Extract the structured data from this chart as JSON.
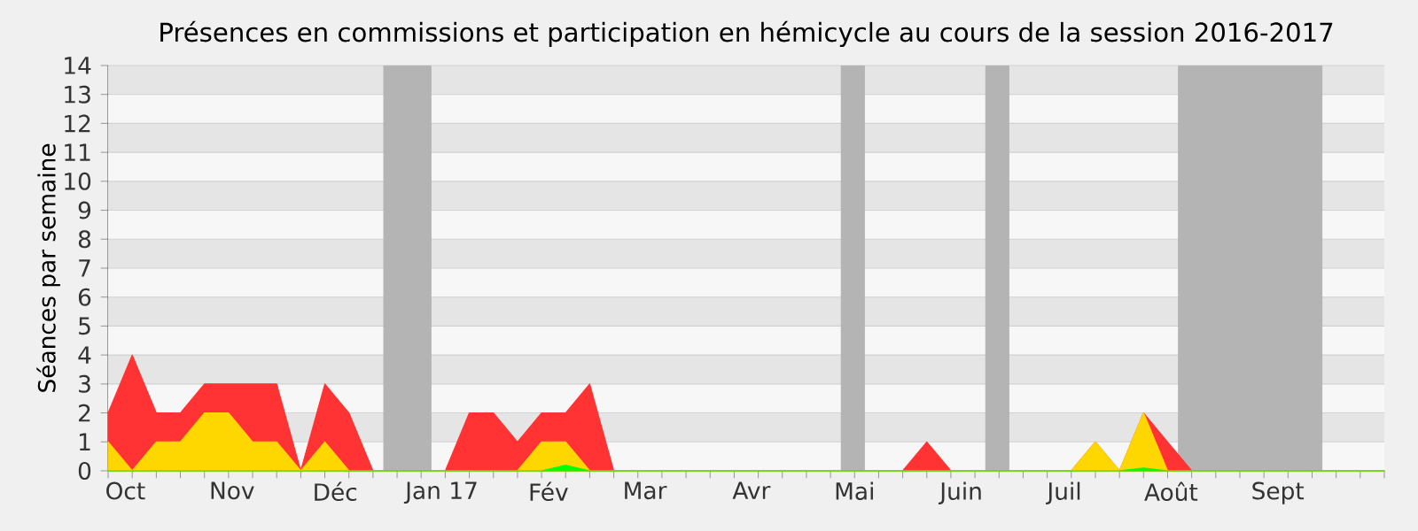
{
  "chart_data": {
    "type": "area",
    "title": "Présences en commissions et participation en hémicycle au cours de la session 2016-2017",
    "ylabel": "Séances par semaine",
    "x": [
      "2016-09-26",
      "2016-10-03",
      "2016-10-10",
      "2016-10-17",
      "2016-10-24",
      "2016-10-31",
      "2016-11-07",
      "2016-11-14",
      "2016-11-21",
      "2016-11-28",
      "2016-12-05",
      "2016-12-12",
      "2016-12-19",
      "2016-12-26",
      "2017-01-02",
      "2017-01-09",
      "2017-01-16",
      "2017-01-23",
      "2017-01-30",
      "2017-02-06",
      "2017-02-13",
      "2017-02-20",
      "2017-02-27",
      "2017-03-06",
      "2017-03-13",
      "2017-03-20",
      "2017-03-27",
      "2017-04-03",
      "2017-04-10",
      "2017-04-17",
      "2017-04-24",
      "2017-05-01",
      "2017-05-08",
      "2017-05-15",
      "2017-05-22",
      "2017-05-29",
      "2017-06-05",
      "2017-06-12",
      "2017-06-19",
      "2017-06-26",
      "2017-07-03",
      "2017-07-10",
      "2017-07-17",
      "2017-07-24",
      "2017-07-31",
      "2017-08-07",
      "2017-08-14",
      "2017-08-21",
      "2017-08-28",
      "2017-09-04",
      "2017-09-11",
      "2017-09-18",
      "2017-09-25",
      "2017-10-02"
    ],
    "series": [
      {
        "color": "#ff3333",
        "values": [
          2,
          4,
          2,
          2,
          3,
          3,
          3,
          3,
          0,
          3,
          2,
          0,
          0,
          0,
          0,
          2,
          2,
          1,
          2,
          2,
          3,
          0,
          0,
          0,
          0,
          0,
          0,
          0,
          0,
          0,
          0,
          0,
          0,
          0,
          1,
          0,
          0,
          0,
          0,
          0,
          0,
          1,
          0,
          2,
          1,
          0,
          0,
          0,
          0,
          0,
          0,
          0,
          0,
          0
        ]
      },
      {
        "color": "#ffd700",
        "values": [
          1,
          0,
          1,
          1,
          2,
          2,
          1,
          1,
          0,
          1,
          0,
          0,
          0,
          0,
          0,
          0,
          0,
          0,
          1,
          1,
          0,
          0,
          0,
          0,
          0,
          0,
          0,
          0,
          0,
          0,
          0,
          0,
          0,
          0,
          0,
          0,
          0,
          0,
          0,
          0,
          0,
          1,
          0,
          2,
          0,
          0,
          0,
          0,
          0,
          0,
          0,
          0,
          0,
          0
        ]
      },
      {
        "color": "#00ff00",
        "values": [
          0,
          0,
          0,
          0,
          0,
          0,
          0,
          0,
          0,
          0,
          0,
          0,
          0,
          0,
          0,
          0,
          0,
          0,
          0,
          0.2,
          0,
          0,
          0,
          0,
          0,
          0,
          0,
          0,
          0,
          0,
          0,
          0,
          0,
          0,
          0,
          0,
          0,
          0,
          0,
          0,
          0,
          0,
          0,
          0.1,
          0,
          0,
          0,
          0,
          0,
          0,
          0,
          0,
          0,
          0
        ]
      }
    ],
    "xlim": [
      "2016-09-26",
      "2017-10-02"
    ],
    "ylim": [
      0,
      14
    ],
    "xticks": [
      {
        "value": "2016-10-01",
        "label": "Oct"
      },
      {
        "value": "2016-11-01",
        "label": "Nov"
      },
      {
        "value": "2016-12-01",
        "label": "Déc"
      },
      {
        "value": "2017-01-01",
        "label": "Jan 17"
      },
      {
        "value": "2017-02-01",
        "label": "Fév"
      },
      {
        "value": "2017-03-01",
        "label": "Mar"
      },
      {
        "value": "2017-04-01",
        "label": "Avr"
      },
      {
        "value": "2017-05-01",
        "label": "Mai"
      },
      {
        "value": "2017-06-01",
        "label": "Juin"
      },
      {
        "value": "2017-07-01",
        "label": "Juil"
      },
      {
        "value": "2017-08-01",
        "label": "Août"
      },
      {
        "value": "2017-09-01",
        "label": "Sept"
      }
    ],
    "yticks": [
      0,
      1,
      2,
      3,
      4,
      5,
      6,
      7,
      8,
      9,
      10,
      11,
      12,
      13,
      14
    ],
    "bands": [
      {
        "axis": "x",
        "from": "2016-12-15",
        "to": "2016-12-29",
        "color": "#b4b4b4"
      },
      {
        "axis": "x",
        "from": "2017-04-27",
        "to": "2017-05-04",
        "color": "#b4b4b4"
      },
      {
        "axis": "x",
        "from": "2017-06-08",
        "to": "2017-06-15",
        "color": "#b4b4b4"
      },
      {
        "axis": "x",
        "from": "2017-08-03",
        "to": "2017-09-14",
        "color": "#b4b4b4"
      }
    ],
    "grid": "y"
  }
}
